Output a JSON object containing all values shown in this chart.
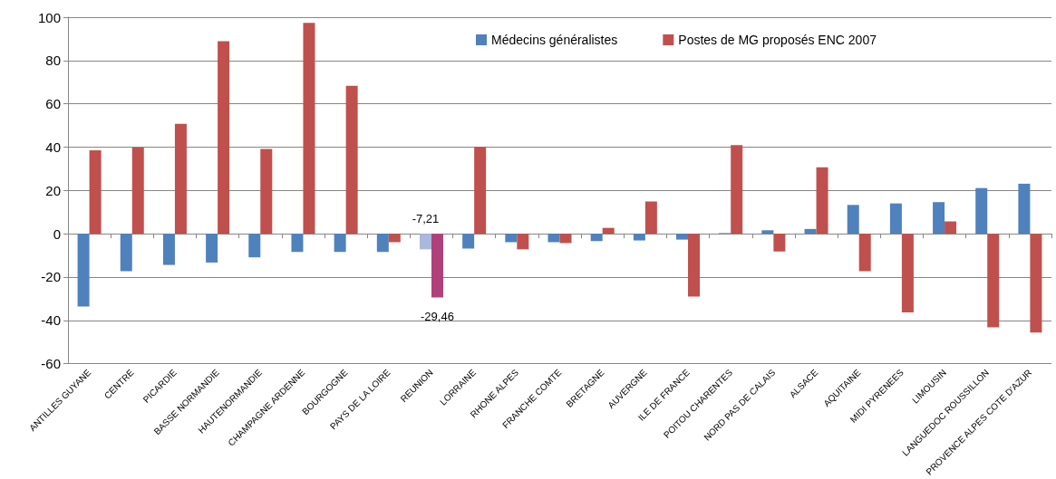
{
  "chart_data": {
    "type": "bar",
    "categories": [
      "ANTILLES GUYANE",
      "CENTRE",
      "PICARDIE",
      "BASSE NORMANDIE",
      "HAUTENORMANDIE",
      "CHAMPAGNE ARDENNE",
      "BOURGOGNE",
      "PAYS DE LA LOIRE",
      "REUNION",
      "LORRAINE",
      "RHONE ALPES",
      "FRANCHE COMTE",
      "BRETAGNE",
      "AUVERGNE",
      "ILE DE FRANCE",
      "POITOU CHARENTES",
      "NORD PAS DE CALAIS",
      "ALSACE",
      "AQUITAINE",
      "MIDI PYRENEES",
      "LIMOUSIN",
      "LANGUEDOC ROUSSILLON",
      "PROVENCE ALPES COTE D'AZUR"
    ],
    "series": [
      {
        "name": "Médecins généralistes",
        "color": "#4f81bd",
        "colors": [
          "#4f81bd",
          "#4f81bd",
          "#4f81bd",
          "#4f81bd",
          "#4f81bd",
          "#4f81bd",
          "#4f81bd",
          "#4f81bd",
          "#a9b8dc",
          "#4f81bd",
          "#4f81bd",
          "#4f81bd",
          "#4f81bd",
          "#4f81bd",
          "#4f81bd",
          "#4f81bd",
          "#4f81bd",
          "#4f81bd",
          "#4f81bd",
          "#4f81bd",
          "#4f81bd",
          "#4f81bd",
          "#4f81bd"
        ],
        "values": [
          -33.6,
          -17.3,
          -14.4,
          -13.3,
          -10.9,
          -8.4,
          -8.4,
          -8.4,
          -7.21,
          -6.8,
          -3.9,
          -3.9,
          -3.4,
          -3.1,
          -2.7,
          0.3,
          1.6,
          2.2,
          13.3,
          14.0,
          14.6,
          21.1,
          23.1
        ],
        "value_labels": [
          null,
          null,
          null,
          null,
          null,
          null,
          null,
          null,
          "-7,21",
          null,
          null,
          null,
          null,
          null,
          null,
          null,
          null,
          null,
          null,
          null,
          null,
          null,
          null
        ]
      },
      {
        "name": "Postes de MG proposés ENC 2007",
        "color": "#c0504d",
        "colors": [
          "#c0504d",
          "#c0504d",
          "#c0504d",
          "#c0504d",
          "#c0504d",
          "#c0504d",
          "#c0504d",
          "#c0504d",
          "#b0407a",
          "#c0504d",
          "#c0504d",
          "#c0504d",
          "#c0504d",
          "#c0504d",
          "#c0504d",
          "#c0504d",
          "#c0504d",
          "#c0504d",
          "#c0504d",
          "#c0504d",
          "#c0504d",
          "#c0504d",
          "#c0504d"
        ],
        "values": [
          38.5,
          39.8,
          50.8,
          88.9,
          39.2,
          97.4,
          68.3,
          -3.9,
          -29.46,
          40.1,
          -7.2,
          -4.3,
          2.7,
          14.9,
          -29.0,
          40.9,
          -8.2,
          30.7,
          -17.3,
          -36.3,
          5.7,
          -43.2,
          -45.6
        ],
        "value_labels": [
          null,
          null,
          null,
          null,
          null,
          null,
          null,
          null,
          "-29,46",
          null,
          null,
          null,
          null,
          null,
          null,
          null,
          null,
          null,
          null,
          null,
          null,
          null,
          null
        ]
      }
    ],
    "ylim": [
      -60,
      100
    ],
    "yticks": [
      -60,
      -40,
      -20,
      0,
      20,
      40,
      60,
      80,
      100
    ],
    "grid": "y",
    "legend": "top"
  }
}
